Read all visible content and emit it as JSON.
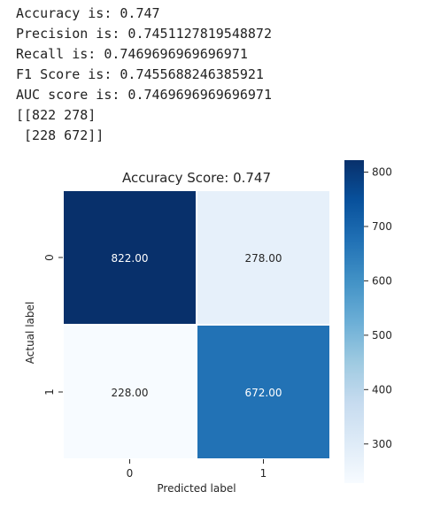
{
  "console": {
    "lines": [
      "Accuracy is: 0.747",
      "Precision is: 0.7451127819548872",
      "Recall is: 0.7469696969696971",
      "F1 Score is: 0.7455688246385921",
      "AUC score is: 0.7469696969696971",
      "[[822 278]",
      " [228 672]]"
    ]
  },
  "chart_data": {
    "type": "heatmap",
    "title": "Accuracy Score: 0.747",
    "xlabel": "Predicted label",
    "ylabel": "Actual label",
    "x_categories": [
      "0",
      "1"
    ],
    "y_categories": [
      "0",
      "1"
    ],
    "values": [
      [
        822,
        278
      ],
      [
        228,
        672
      ]
    ],
    "cell_labels": [
      [
        "822.00",
        "278.00"
      ],
      [
        "228.00",
        "672.00"
      ]
    ],
    "colormap": "Blues",
    "colorbar": {
      "range": [
        228,
        822
      ],
      "ticks": [
        300,
        400,
        500,
        600,
        700,
        800
      ],
      "tick_labels": [
        "300",
        "400",
        "500",
        "600",
        "700",
        "800"
      ]
    },
    "colors": {
      "low": "#f7fbff",
      "high": "#08306b",
      "light_text": "#ffffff",
      "dark_text": "#262626"
    }
  }
}
